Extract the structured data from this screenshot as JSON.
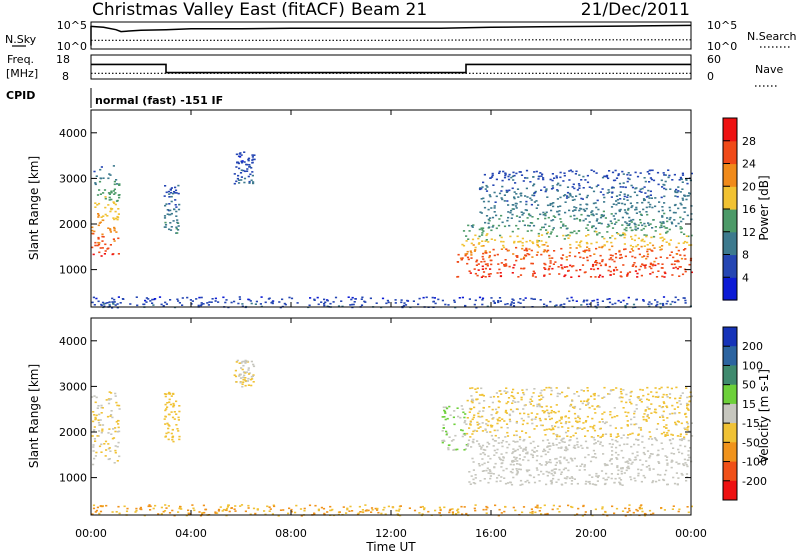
{
  "header": {
    "station": "Christmas Valley East (fitACF)",
    "beam": "Beam 21",
    "date": "21/Dec/2011"
  },
  "strip_panels": {
    "nsky": {
      "label": "N.Sky",
      "right_label": "N.Search",
      "left_ticks": [
        "10^5",
        "10^0"
      ],
      "right_ticks": [
        "10^5",
        "10^0"
      ]
    },
    "freq": {
      "label_line1": "Freq.",
      "label_line2": "[MHz]",
      "right_label": "Nave",
      "left_ticks": [
        "18",
        "8"
      ],
      "right_ticks": [
        "60",
        "0"
      ]
    },
    "cpid": {
      "label": "CPID",
      "text": "normal (fast) -151 IF"
    }
  },
  "axes": {
    "xlabel": "Time UT",
    "ylabel": "Slant Range [km]",
    "x_ticks": [
      "00:00",
      "04:00",
      "08:00",
      "12:00",
      "16:00",
      "20:00",
      "00:00"
    ],
    "y_ticks": [
      "1000",
      "2000",
      "3000",
      "4000"
    ]
  },
  "colorbars": {
    "power": {
      "label": "Power [dB]",
      "ticks": [
        "4",
        "8",
        "12",
        "16",
        "20",
        "24",
        "28"
      ],
      "colors": [
        "#0c1bd6",
        "#2546b3",
        "#3d7a8e",
        "#4c9a68",
        "#f1c232",
        "#f08a1a",
        "#f04a18",
        "#ee1111"
      ]
    },
    "velocity": {
      "label": "Velocity [m s-1]",
      "ticks": [
        "200",
        "100",
        "50",
        "15",
        "-15",
        "-50",
        "-100",
        "-200"
      ],
      "colors": [
        "#1633b8",
        "#2c64a0",
        "#3f8a6e",
        "#6dd03a",
        "#c6c6be",
        "#f0c235",
        "#f0931c",
        "#f05018",
        "#ee1111"
      ]
    }
  },
  "chart_data": [
    {
      "type": "line",
      "title": "N.Sky / N.Search",
      "x_range_hours": [
        0,
        24
      ],
      "series": [
        {
          "name": "N.Sky",
          "x": [
            0,
            0.5,
            1,
            1.2,
            2,
            3,
            4,
            5,
            6,
            8,
            10,
            12,
            14,
            16,
            18,
            20,
            22,
            24
          ],
          "values": [
            4.3,
            4.1,
            3.6,
            3.2,
            3.5,
            3.6,
            3.8,
            3.8,
            3.8,
            3.9,
            3.9,
            3.9,
            3.9,
            4.1,
            4.2,
            4.3,
            4.4,
            4.5
          ]
        },
        {
          "name": "N.Search",
          "x": [
            0,
            6,
            12,
            18,
            24
          ],
          "values": [
            1.4,
            1.4,
            1.4,
            1.5,
            1.5
          ]
        }
      ]
    },
    {
      "type": "line",
      "title": "Freq. [MHz] / Nave",
      "x_range_hours": [
        0,
        24
      ],
      "series": [
        {
          "name": "Freq. [MHz]",
          "x": [
            0,
            3,
            3,
            15,
            15,
            24
          ],
          "values": [
            14.3,
            14.3,
            10.2,
            10.2,
            14.3,
            14.3
          ]
        },
        {
          "name": "Nave",
          "x": [
            0,
            24
          ],
          "values": [
            11,
            11
          ]
        }
      ]
    },
    {
      "type": "heatmap",
      "title": "Power [dB]",
      "x_range_hours": [
        0,
        24
      ],
      "ylim": [
        180,
        4500
      ],
      "regions": [
        {
          "t0": 0.0,
          "t1": 1.1,
          "r0": 1300,
          "r1": 3300,
          "p0": 28,
          "p1": 8
        },
        {
          "t0": 2.9,
          "t1": 3.5,
          "r0": 1800,
          "r1": 2900,
          "p0": 12,
          "p1": 6
        },
        {
          "t0": 5.7,
          "t1": 6.5,
          "r0": 2900,
          "r1": 3600,
          "p0": 8,
          "p1": 5
        },
        {
          "t0": 14.6,
          "t1": 24.0,
          "r0": 850,
          "r1": 1500,
          "p0": 28,
          "p1": 24
        },
        {
          "t0": 14.8,
          "t1": 24.0,
          "r0": 1500,
          "r1": 2000,
          "p0": 20,
          "p1": 12
        },
        {
          "t0": 15.5,
          "t1": 24.0,
          "r0": 2000,
          "r1": 3200,
          "p0": 12,
          "p1": 6
        },
        {
          "t0": 0.0,
          "t1": 24.0,
          "r0": 180,
          "r1": 420,
          "p0": 8,
          "p1": 4
        }
      ]
    },
    {
      "type": "heatmap",
      "title": "Velocity [m s-1]",
      "x_range_hours": [
        0,
        24
      ],
      "ylim": [
        180,
        4500
      ],
      "regions": [
        {
          "t0": 0.0,
          "t1": 1.1,
          "r0": 1300,
          "r1": 2900,
          "v": -15
        },
        {
          "t0": 2.9,
          "t1": 3.5,
          "r0": 1800,
          "r1": 2900,
          "v": -30
        },
        {
          "t0": 5.7,
          "t1": 6.5,
          "r0": 3000,
          "r1": 3600,
          "v": -15
        },
        {
          "t0": 14.0,
          "t1": 15.0,
          "r0": 1600,
          "r1": 2600,
          "v": 15
        },
        {
          "t0": 15.0,
          "t1": 24.0,
          "r0": 850,
          "r1": 1900,
          "v": 0
        },
        {
          "t0": 15.0,
          "t1": 24.0,
          "r0": 1900,
          "r1": 3000,
          "v": -20
        },
        {
          "t0": 0.0,
          "t1": 24.0,
          "r0": 180,
          "r1": 420,
          "v": -50
        }
      ]
    }
  ]
}
